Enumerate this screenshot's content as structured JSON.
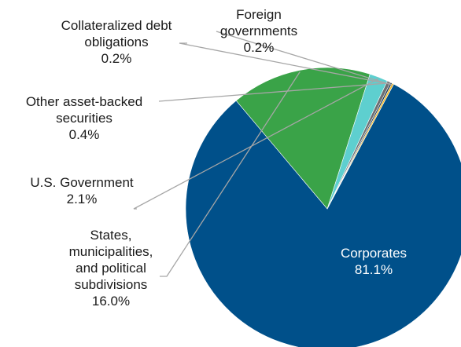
{
  "chart_data": {
    "type": "pie",
    "title": "",
    "slices": [
      {
        "name": "Corporates",
        "value": 81.1,
        "label": "81.1%",
        "color": "#00508a"
      },
      {
        "name": "States, municipalities, and political subdivisions",
        "value": 16.0,
        "label": "16.0%",
        "color": "#3aa348"
      },
      {
        "name": "U.S. Government",
        "value": 2.1,
        "label": "2.1%",
        "color": "#5ecfcf"
      },
      {
        "name": "Other asset-backed securities",
        "value": 0.4,
        "label": "0.4%",
        "color": "#6d6e71"
      },
      {
        "name": "Collateralized debt obligations",
        "value": 0.2,
        "label": "0.2%",
        "color": "#1f3a56"
      },
      {
        "name": "Foreign governments",
        "value": 0.2,
        "label": "0.2%",
        "color": "#f2b71d"
      }
    ],
    "label_lines": {
      "Corporates": [
        "Corporates"
      ],
      "States, municipalities, and political subdivisions": [
        "States,",
        "municipalities,",
        "and political",
        "subdivisions"
      ],
      "U.S. Government": [
        "U.S. Government"
      ],
      "Other asset-backed securities": [
        "Other asset-backed",
        "securities"
      ],
      "Collateralized debt obligations": [
        "Collateralized debt",
        "obligations"
      ],
      "Foreign governments": [
        "Foreign",
        "governments"
      ]
    },
    "legend": "none"
  }
}
